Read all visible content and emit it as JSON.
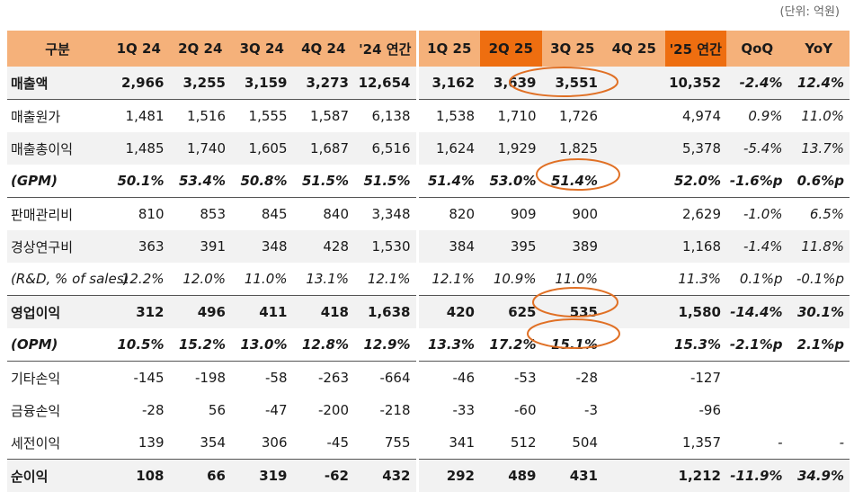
{
  "unit": "(단위: 억원)",
  "header": {
    "label": "구분",
    "columns": [
      "1Q 24",
      "2Q 24",
      "3Q 24",
      "4Q 24",
      "'24 연간",
      "1Q 25",
      "2Q 25",
      "3Q 25",
      "4Q 25",
      "'25 연간",
      "QoQ",
      "YoY"
    ],
    "highlight_color": "#ee6e10",
    "header_color": "#f5b17a"
  },
  "rows": [
    {
      "label": "매출액",
      "values": [
        "2,966",
        "3,255",
        "3,159",
        "3,273",
        "12,654",
        "3,162",
        "3,639",
        "3,551",
        "",
        "10,352",
        "-2.4%",
        "12.4%"
      ]
    },
    {
      "label": "매출원가",
      "values": [
        "1,481",
        "1,516",
        "1,555",
        "1,587",
        "6,138",
        "1,538",
        "1,710",
        "1,726",
        "",
        "4,974",
        "0.9%",
        "11.0%"
      ]
    },
    {
      "label": "매출총이익",
      "values": [
        "1,485",
        "1,740",
        "1,605",
        "1,687",
        "6,516",
        "1,624",
        "1,929",
        "1,825",
        "",
        "5,378",
        "-5.4%",
        "13.7%"
      ]
    },
    {
      "label": "(GPM)",
      "values": [
        "50.1%",
        "53.4%",
        "50.8%",
        "51.5%",
        "51.5%",
        "51.4%",
        "53.0%",
        "51.4%",
        "",
        "52.0%",
        "-1.6%p",
        "0.6%p"
      ]
    },
    {
      "label": "판매관리비",
      "values": [
        "810",
        "853",
        "845",
        "840",
        "3,348",
        "820",
        "909",
        "900",
        "",
        "2,629",
        "-1.0%",
        "6.5%"
      ]
    },
    {
      "label": "경상연구비",
      "values": [
        "363",
        "391",
        "348",
        "428",
        "1,530",
        "384",
        "395",
        "389",
        "",
        "1,168",
        "-1.4%",
        "11.8%"
      ]
    },
    {
      "label": "(R&D, % of sales)",
      "values": [
        "12.2%",
        "12.0%",
        "11.0%",
        "13.1%",
        "12.1%",
        "12.1%",
        "10.9%",
        "11.0%",
        "",
        "11.3%",
        "0.1%p",
        "-0.1%p"
      ]
    },
    {
      "label": "영업이익",
      "values": [
        "312",
        "496",
        "411",
        "418",
        "1,638",
        "420",
        "625",
        "535",
        "",
        "1,580",
        "-14.4%",
        "30.1%"
      ]
    },
    {
      "label": "(OPM)",
      "values": [
        "10.5%",
        "15.2%",
        "13.0%",
        "12.8%",
        "12.9%",
        "13.3%",
        "17.2%",
        "15.1%",
        "",
        "15.3%",
        "-2.1%p",
        "2.1%p"
      ]
    },
    {
      "label": "기타손익",
      "values": [
        "-145",
        "-198",
        "-58",
        "-263",
        "-664",
        "-46",
        "-53",
        "-28",
        "",
        "-127",
        "",
        ""
      ]
    },
    {
      "label": "금융손익",
      "values": [
        "-28",
        "56",
        "-47",
        "-200",
        "-218",
        "-33",
        "-60",
        "-3",
        "",
        "-96",
        "",
        ""
      ]
    },
    {
      "label": "세전이익",
      "values": [
        "139",
        "354",
        "306",
        "-45",
        "755",
        "341",
        "512",
        "504",
        "",
        "1,357",
        "-",
        "-"
      ]
    },
    {
      "label": "순이익",
      "values": [
        "108",
        "66",
        "319",
        "-62",
        "432",
        "292",
        "489",
        "431",
        "",
        "1,212",
        "-11.9%",
        "34.9%"
      ]
    }
  ],
  "annotation_color": "#e07025"
}
